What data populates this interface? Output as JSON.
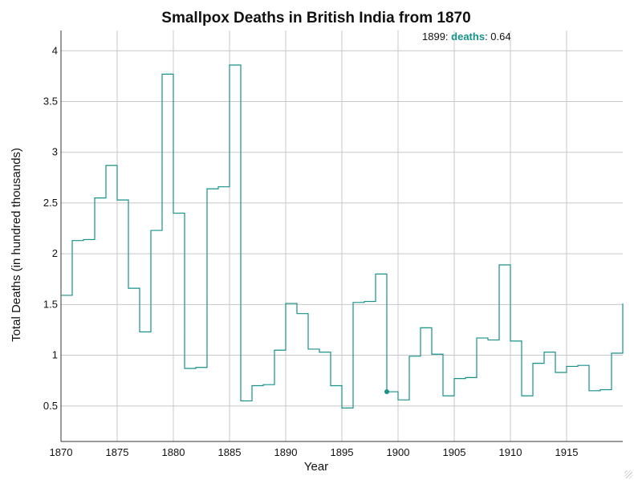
{
  "colors": {
    "series": "#16918a",
    "grid": "#c8c8c8",
    "axis": "#333333",
    "text": "#111111"
  },
  "hover": {
    "year_text": "1899",
    "separator": ": ",
    "series_label": "deaths",
    "value_sep": ": ",
    "value_text": "0.64"
  },
  "chart_data": {
    "type": "line",
    "step": "post",
    "title": "Smallpox Deaths in British India from 1870",
    "xlabel": "Year",
    "ylabel": "Total Deaths (in hundred thousands)",
    "xlim": [
      1870,
      1920
    ],
    "ylim": [
      0.15,
      4.2
    ],
    "xticks": [
      1870,
      1875,
      1880,
      1885,
      1890,
      1895,
      1900,
      1905,
      1910,
      1915
    ],
    "yticks": [
      0.5,
      1,
      1.5,
      2,
      2.5,
      3,
      3.5,
      4
    ],
    "ytick_labels": [
      "0.5",
      "1",
      "1.5",
      "2",
      "2.5",
      "3",
      "3.5",
      "4"
    ],
    "grid": true,
    "legend": "none",
    "highlight": {
      "x": 1899,
      "y": 0.64
    },
    "series": [
      {
        "x": [
          1870,
          1871,
          1872,
          1873,
          1874,
          1875,
          1876,
          1877,
          1878,
          1879,
          1880,
          1881,
          1882,
          1883,
          1884,
          1885,
          1886,
          1887,
          1888,
          1889,
          1890,
          1891,
          1892,
          1893,
          1894,
          1895,
          1896,
          1897,
          1898,
          1899,
          1900,
          1901,
          1902,
          1903,
          1904,
          1905,
          1906,
          1907,
          1908,
          1909,
          1910,
          1911,
          1912,
          1913,
          1914,
          1915,
          1916,
          1917,
          1918,
          1919
        ],
        "y": [
          1.59,
          2.13,
          2.14,
          2.55,
          2.87,
          2.53,
          1.66,
          1.23,
          2.23,
          3.77,
          2.4,
          0.87,
          0.88,
          2.64,
          2.66,
          3.86,
          0.55,
          0.7,
          0.71,
          1.05,
          1.51,
          1.41,
          1.06,
          1.03,
          0.7,
          0.48,
          1.52,
          1.53,
          1.8,
          0.64,
          0.56,
          0.99,
          1.27,
          1.01,
          0.6,
          0.77,
          0.78,
          1.17,
          1.15,
          1.89,
          1.14,
          0.6,
          0.92,
          1.03,
          0.83,
          0.89,
          0.9,
          0.65,
          0.66,
          1.02
        ]
      }
    ],
    "tail": {
      "x": 1920,
      "y": 1.51
    }
  }
}
